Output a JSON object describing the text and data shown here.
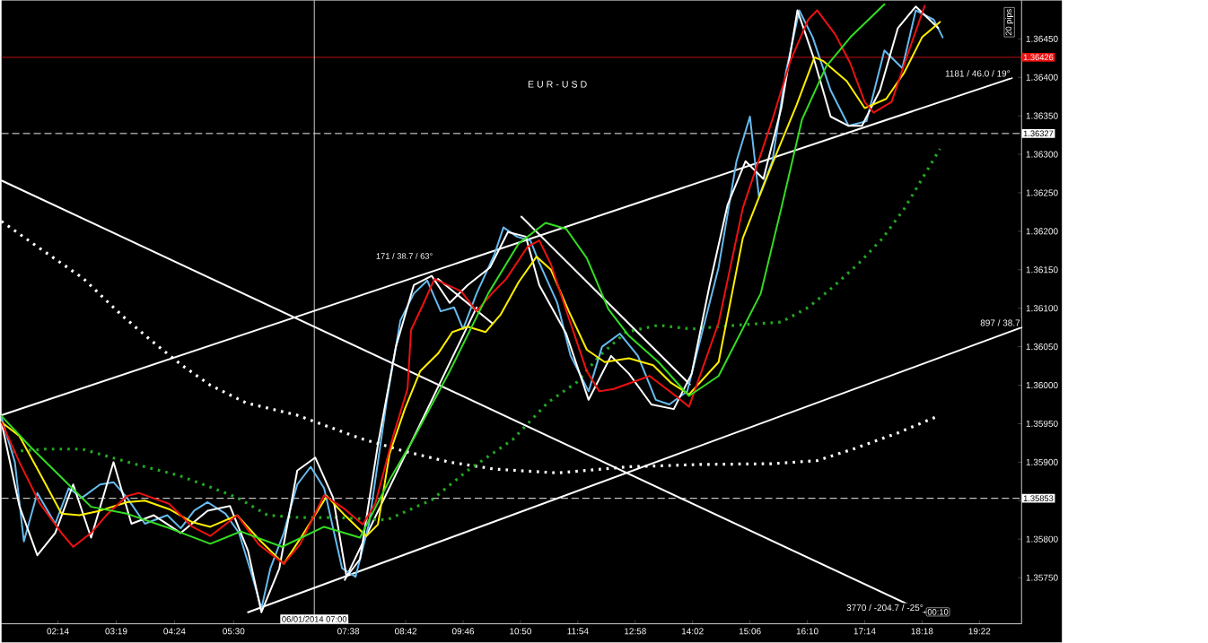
{
  "chart_data": {
    "type": "line",
    "title": "E U R - U S D",
    "xlim": [
      1.183,
      20.15
    ],
    "ylim": [
      1.3569,
      1.365
    ],
    "xticks": [
      {
        "value": 2.233,
        "label": "02:14"
      },
      {
        "value": 3.317,
        "label": "03:19"
      },
      {
        "value": 4.4,
        "label": "04:24"
      },
      {
        "value": 5.5,
        "label": "05:30"
      },
      {
        "value": 7.633,
        "label": "07:38"
      },
      {
        "value": 8.7,
        "label": "08:42"
      },
      {
        "value": 9.767,
        "label": "09:46"
      },
      {
        "value": 10.833,
        "label": "10:50"
      },
      {
        "value": 11.9,
        "label": "11:54"
      },
      {
        "value": 12.967,
        "label": "12:58"
      },
      {
        "value": 14.033,
        "label": "14:02"
      },
      {
        "value": 15.1,
        "label": "15:06"
      },
      {
        "value": 16.167,
        "label": "16:10"
      },
      {
        "value": 17.233,
        "label": "17:14"
      },
      {
        "value": 18.3,
        "label": "18:18"
      },
      {
        "value": 19.367,
        "label": "19:22"
      }
    ],
    "yticks": [
      {
        "value": 1.3575,
        "label": "1.35750"
      },
      {
        "value": 1.358,
        "label": "1.35800"
      },
      {
        "value": 1.3585,
        "label": null
      },
      {
        "value": 1.359,
        "label": "1.35900"
      },
      {
        "value": 1.3595,
        "label": "1.35950"
      },
      {
        "value": 1.36,
        "label": "1.36000"
      },
      {
        "value": 1.3605,
        "label": "1.36050"
      },
      {
        "value": 1.361,
        "label": "1.36100"
      },
      {
        "value": 1.3615,
        "label": "1.36150"
      },
      {
        "value": 1.362,
        "label": "1.36200"
      },
      {
        "value": 1.3625,
        "label": "1.36250"
      },
      {
        "value": 1.363,
        "label": "1.36300"
      },
      {
        "value": 1.3635,
        "label": "1.36350"
      },
      {
        "value": 1.364,
        "label": "1.36400"
      },
      {
        "value": 1.3645,
        "label": "1.36450"
      }
    ],
    "series": [
      {
        "type": "line",
        "color": "#ffffff",
        "line_style": "solid",
        "x": [
          1.183,
          19.967
        ],
        "values": [
          1.35961,
          1.36399
        ]
      },
      {
        "type": "line",
        "color": "#ffffff",
        "line_style": "solid",
        "x": [
          1.183,
          18.35
        ],
        "values": [
          1.36266,
          1.35705
        ]
      },
      {
        "type": "line",
        "color": "#ffffff",
        "line_style": "solid",
        "x": [
          5.767,
          20.15
        ],
        "values": [
          1.35705,
          1.36075
        ]
      },
      {
        "type": "line",
        "color": "#ffffff",
        "line_style": "solid",
        "x": [
          10.85,
          13.983
        ],
        "values": [
          1.36219,
          1.36001
        ]
      },
      {
        "type": "line",
        "color": "#ffffff",
        "line_style": "solid",
        "x": [
          7.567,
          10.017
        ],
        "values": [
          1.35747,
          1.36101
        ]
      },
      {
        "type": "line",
        "color": "#ffffff",
        "line_style": "solid",
        "x": [
          9.3,
          10.3
        ],
        "values": [
          1.36138,
          1.36081
        ]
      },
      {
        "type": "line",
        "color": "#ffffff",
        "line_style": "dotted",
        "x": [
          1.183,
          1.933,
          2.7,
          3.433,
          3.967,
          4.517,
          5.067,
          5.733,
          6.683,
          7.85,
          8.683,
          9.517,
          10.35,
          11.517,
          12.85,
          14.183,
          15.517,
          16.35,
          17.017,
          17.85,
          18.6
        ],
        "values": [
          1.36213,
          1.36176,
          1.36139,
          1.3609,
          1.36058,
          1.36027,
          1.36,
          1.35977,
          1.35961,
          1.35931,
          1.35914,
          1.359,
          1.35891,
          1.35886,
          1.35894,
          1.35897,
          1.35898,
          1.35902,
          1.35917,
          1.35938,
          1.3596
        ]
      },
      {
        "type": "line",
        "color": "#22aa22",
        "line_style": "dotted",
        "x": [
          1.4,
          2.017,
          2.683,
          3.233,
          3.85,
          4.467,
          5.017,
          5.567,
          6.133,
          6.733,
          7.4,
          8.35,
          9.183,
          9.85,
          10.683,
          11.35,
          11.883,
          12.3,
          12.8,
          13.4,
          14.017,
          14.85,
          15.683,
          16.183,
          16.65,
          17.133,
          17.567,
          17.967,
          18.3,
          18.633
        ],
        "values": [
          1.35914,
          1.35917,
          1.35917,
          1.35906,
          1.35894,
          1.35883,
          1.35869,
          1.35854,
          1.35831,
          1.35828,
          1.35828,
          1.35825,
          1.35851,
          1.35889,
          1.35929,
          1.35978,
          1.36004,
          1.36038,
          1.36069,
          1.36078,
          1.36073,
          1.36078,
          1.36082,
          1.36101,
          1.36128,
          1.36159,
          1.36191,
          1.36229,
          1.36268,
          1.36307
        ]
      },
      {
        "type": "line",
        "color": "#66bbee",
        "line_style": "solid",
        "x": [
          1.183,
          1.433,
          1.6,
          1.85,
          2.183,
          2.433,
          2.683,
          3.017,
          3.267,
          3.517,
          3.85,
          4.267,
          4.517,
          4.767,
          5.017,
          5.35,
          5.6,
          5.85,
          6.017,
          6.183,
          6.433,
          6.683,
          6.933,
          7.183,
          7.517,
          7.767,
          8.017,
          8.35,
          8.6,
          8.85,
          9.1,
          9.35,
          9.6,
          9.767,
          10.017,
          10.35,
          10.517,
          10.767,
          11.017,
          11.183,
          11.517,
          11.767,
          12.1,
          12.35,
          12.683,
          13.017,
          13.35,
          13.6,
          13.933,
          14.183,
          14.517,
          14.85,
          15.1,
          15.267,
          15.517,
          15.767,
          16.017,
          16.267,
          16.6,
          16.933,
          17.267,
          17.6,
          17.933,
          18.183,
          18.517,
          18.683
        ],
        "values": [
          1.35958,
          1.359,
          1.35797,
          1.3586,
          1.3582,
          1.35866,
          1.35854,
          1.35871,
          1.35874,
          1.35854,
          1.3582,
          1.35831,
          1.35814,
          1.35837,
          1.35848,
          1.35833,
          1.35808,
          1.35751,
          1.3571,
          1.35762,
          1.35808,
          1.35871,
          1.35894,
          1.35866,
          1.35762,
          1.35751,
          1.3582,
          1.35981,
          1.36084,
          1.36119,
          1.36136,
          1.36096,
          1.36101,
          1.36073,
          1.36119,
          1.3617,
          1.36205,
          1.36193,
          1.36188,
          1.36159,
          1.36107,
          1.36038,
          1.35992,
          1.3605,
          1.36067,
          1.36038,
          1.35981,
          1.35975,
          1.35992,
          1.36061,
          1.36153,
          1.36291,
          1.36349,
          1.36245,
          1.36291,
          1.36406,
          1.36487,
          1.36452,
          1.36383,
          1.36337,
          1.36343,
          1.36435,
          1.36412,
          1.36487,
          1.36475,
          1.36452
        ]
      },
      {
        "type": "line",
        "color": "#ffffff",
        "line_style": "solid",
        "x": [
          1.183,
          1.517,
          1.85,
          2.183,
          2.517,
          2.85,
          3.267,
          3.6,
          4.017,
          4.517,
          5.017,
          5.433,
          5.767,
          6.017,
          6.35,
          6.683,
          7.017,
          7.35,
          7.6,
          7.85,
          8.183,
          8.517,
          8.85,
          9.183,
          9.517,
          9.85,
          10.267,
          10.6,
          10.933,
          11.183,
          11.683,
          12.1,
          12.517,
          12.85,
          13.267,
          13.683,
          14.017,
          14.35,
          14.683,
          15.017,
          15.35,
          15.683,
          15.983,
          16.267,
          16.6,
          16.933,
          17.183,
          17.517,
          17.85,
          18.183,
          18.6
        ],
        "values": [
          1.35952,
          1.35843,
          1.35779,
          1.35808,
          1.35871,
          1.35802,
          1.359,
          1.3582,
          1.35831,
          1.35808,
          1.35837,
          1.35843,
          1.35785,
          1.35705,
          1.35762,
          1.35889,
          1.35906,
          1.35854,
          1.35751,
          1.35774,
          1.35923,
          1.3605,
          1.3613,
          1.36142,
          1.36107,
          1.3613,
          1.36153,
          1.36199,
          1.36193,
          1.3613,
          1.36067,
          1.35981,
          1.36038,
          1.36015,
          1.35975,
          1.35969,
          1.36015,
          1.3613,
          1.36234,
          1.36291,
          1.36268,
          1.3636,
          1.36487,
          1.36429,
          1.36349,
          1.36337,
          1.36337,
          1.36383,
          1.36464,
          1.36492,
          1.36464
        ]
      },
      {
        "type": "line",
        "color": "#ffee00",
        "line_style": "solid",
        "x": [
          1.183,
          1.517,
          1.9,
          2.3,
          2.633,
          3.017,
          3.517,
          3.85,
          4.3,
          4.733,
          5.067,
          5.567,
          5.967,
          6.433,
          6.733,
          7.233,
          7.567,
          7.967,
          8.183,
          8.4,
          8.683,
          8.967,
          9.3,
          9.567,
          9.85,
          10.183,
          10.467,
          10.8,
          11.133,
          11.4,
          11.733,
          12.067,
          12.4,
          12.85,
          13.3,
          13.633,
          13.967,
          14.517,
          14.967,
          15.517,
          15.967,
          16.3,
          16.467,
          16.9,
          17.233,
          17.633,
          17.967,
          18.3,
          18.633
        ],
        "values": [
          1.35952,
          1.35934,
          1.35885,
          1.35833,
          1.35831,
          1.35837,
          1.35848,
          1.3585,
          1.35839,
          1.35822,
          1.35816,
          1.35831,
          1.358,
          1.35768,
          1.358,
          1.35856,
          1.35831,
          1.35804,
          1.35819,
          1.35911,
          1.35969,
          1.36018,
          1.36041,
          1.36069,
          1.36076,
          1.36069,
          1.36092,
          1.36134,
          1.36167,
          1.3615,
          1.36096,
          1.36046,
          1.3603,
          1.36035,
          1.36026,
          1.36003,
          1.35988,
          1.3603,
          1.36191,
          1.36288,
          1.36364,
          1.36426,
          1.36421,
          1.36395,
          1.3636,
          1.36372,
          1.36406,
          1.36452,
          1.36472
        ]
      },
      {
        "type": "line",
        "color": "#ee1111",
        "line_style": "solid",
        "x": [
          1.183,
          1.517,
          1.9,
          2.3,
          2.517,
          2.85,
          3.133,
          3.517,
          3.733,
          4.3,
          4.733,
          5.067,
          5.567,
          5.967,
          6.433,
          6.733,
          7.183,
          7.567,
          7.9,
          8.133,
          8.467,
          8.733,
          8.8,
          9.017,
          9.233,
          9.733,
          10.017,
          10.3,
          10.567,
          10.967,
          11.183,
          11.4,
          11.733,
          12.067,
          12.3,
          12.567,
          13.233,
          13.683,
          13.967,
          14.517,
          14.967,
          15.517,
          15.85,
          16.183,
          16.35,
          16.683,
          16.967,
          17.233,
          17.4,
          17.733,
          18.067,
          18.35
        ],
        "values": [
          1.35952,
          1.359,
          1.35846,
          1.35808,
          1.3579,
          1.35808,
          1.35831,
          1.35856,
          1.3586,
          1.35846,
          1.35816,
          1.35804,
          1.35831,
          1.35793,
          1.35768,
          1.35793,
          1.35857,
          1.35839,
          1.35819,
          1.35846,
          1.35934,
          1.35995,
          1.36072,
          1.36104,
          1.36138,
          1.36122,
          1.36096,
          1.36119,
          1.36138,
          1.3618,
          1.36188,
          1.36157,
          1.36087,
          1.36018,
          1.35992,
          1.35995,
          1.36012,
          1.35988,
          1.35972,
          1.36081,
          1.3623,
          1.36345,
          1.36421,
          1.36475,
          1.36487,
          1.36456,
          1.36418,
          1.36368,
          1.36354,
          1.36368,
          1.36437,
          1.36493
        ]
      },
      {
        "type": "line",
        "color": "#33dd22",
        "line_style": "solid",
        "x": [
          1.183,
          1.733,
          2.3,
          2.85,
          3.517,
          4.233,
          5.067,
          5.633,
          6.4,
          7.183,
          7.85,
          8.4,
          8.85,
          9.517,
          10.233,
          10.8,
          11.3,
          11.683,
          12.067,
          12.467,
          12.85,
          13.4,
          13.967,
          14.517,
          15.3,
          15.683,
          16.067,
          16.517,
          16.967,
          17.6
        ],
        "values": [
          1.3596,
          1.35919,
          1.3588,
          1.35842,
          1.35833,
          1.35816,
          1.35794,
          1.3581,
          1.3579,
          1.35816,
          1.35802,
          1.35877,
          1.35931,
          1.36018,
          1.36119,
          1.36184,
          1.36211,
          1.36203,
          1.36165,
          1.36099,
          1.36064,
          1.3603,
          1.35986,
          1.36012,
          1.36119,
          1.3623,
          1.36345,
          1.36414,
          1.36452,
          1.36495
        ]
      }
    ],
    "ref_lines": [
      {
        "axis": "y",
        "value": 1.36426,
        "label": "1.36426",
        "color": "#ee1111",
        "line_style": "solid"
      },
      {
        "axis": "y",
        "value": 1.36327,
        "label": "1.36327",
        "color": "#ffffff",
        "line_style": "dashed"
      },
      {
        "axis": "y",
        "value": 1.35853,
        "label": "1.35853",
        "color": "#ffffff",
        "line_style": "dashed"
      },
      {
        "axis": "x",
        "value": 7.0,
        "label": "06/01/2014 07:00",
        "color": "#ffffff",
        "line_style": "solid"
      }
    ],
    "annotations": [
      {
        "text": "1181 / 46.0 / 19°",
        "x": 19.967,
        "y": 1.36399
      },
      {
        "text": "897 / 38.7",
        "x": 20.15,
        "y": 1.36075
      },
      {
        "text": "3770 / -204.7 / -25°",
        "x": 18.35,
        "y": 1.35705
      },
      "171 / 38.7 / 63°",
      "20 pips",
      "00:10"
    ]
  }
}
